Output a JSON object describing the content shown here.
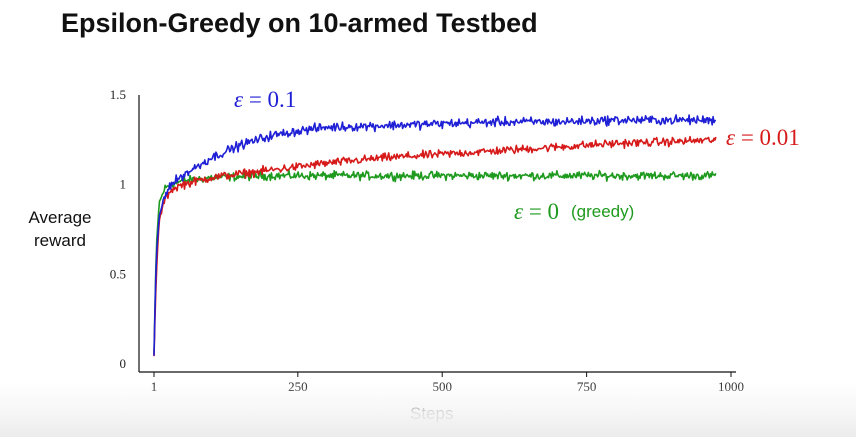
{
  "title": "Epsilon-Greedy on 10-armed Testbed",
  "chart_data": {
    "type": "line",
    "title": "Epsilon-Greedy on 10-armed Testbed",
    "xlabel": "Steps",
    "ylabel_lines": [
      "Average",
      "reward"
    ],
    "xlim": [
      1,
      1000
    ],
    "ylim": [
      0,
      1.5
    ],
    "x_ticks": [
      {
        "value": 1,
        "label": "1"
      },
      {
        "value": 250,
        "label": "250"
      },
      {
        "value": 500,
        "label": "500"
      },
      {
        "value": 750,
        "label": "750"
      },
      {
        "value": 1000,
        "label": "1000"
      }
    ],
    "y_ticks": [
      {
        "value": 0,
        "label": "0"
      },
      {
        "value": 0.5,
        "label": "0.5"
      },
      {
        "value": 1,
        "label": "1"
      },
      {
        "value": 1.5,
        "label": "1.5"
      }
    ],
    "grid": false,
    "series": [
      {
        "label_parts": {
          "symbol": "ε",
          "rest": " = 0.1"
        },
        "color": "#1f1fd6",
        "x": [
          1,
          5,
          10,
          20,
          30,
          50,
          75,
          100,
          150,
          200,
          250,
          300,
          400,
          500,
          600,
          700,
          800,
          900,
          975
        ],
        "values": [
          0.05,
          0.6,
          0.82,
          0.95,
          1.0,
          1.05,
          1.1,
          1.15,
          1.22,
          1.27,
          1.3,
          1.32,
          1.33,
          1.34,
          1.35,
          1.35,
          1.36,
          1.36,
          1.36
        ],
        "noise": 0.022
      },
      {
        "label_parts": {
          "symbol": "ε",
          "rest": " = 0.01"
        },
        "color": "#d61a1a",
        "x": [
          1,
          5,
          10,
          20,
          30,
          50,
          75,
          100,
          150,
          200,
          250,
          300,
          400,
          500,
          600,
          700,
          800,
          900,
          975
        ],
        "values": [
          0.05,
          0.5,
          0.8,
          0.92,
          0.97,
          1.0,
          1.02,
          1.04,
          1.06,
          1.08,
          1.1,
          1.12,
          1.15,
          1.17,
          1.19,
          1.21,
          1.23,
          1.24,
          1.25
        ],
        "noise": 0.02
      },
      {
        "label_parts": {
          "symbol": "ε",
          "rest": " = 0"
        },
        "note": "(greedy)",
        "color": "#1e9a1e",
        "x": [
          1,
          5,
          10,
          20,
          30,
          50,
          75,
          100,
          200,
          300,
          400,
          500,
          600,
          700,
          800,
          900,
          975
        ],
        "values": [
          0.05,
          0.65,
          0.9,
          0.98,
          1.0,
          1.02,
          1.03,
          1.04,
          1.05,
          1.05,
          1.05,
          1.05,
          1.05,
          1.05,
          1.05,
          1.05,
          1.05
        ],
        "noise": 0.02
      }
    ]
  }
}
